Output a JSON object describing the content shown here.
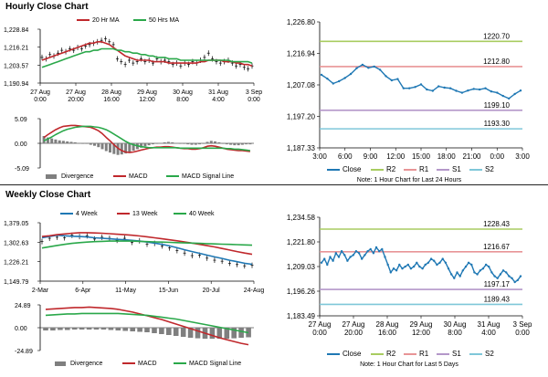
{
  "sections": {
    "hourly_title": "Hourly Close Chart",
    "weekly_title": "Weekly Close Chart"
  },
  "colors": {
    "ma20": "#c0282c",
    "ma50": "#2aa84a",
    "close": "#1f78b4",
    "r2": "#a8cc60",
    "r1": "#e89496",
    "s1": "#b497c9",
    "s2": "#7fc7d9",
    "hist": "#7f7f7f",
    "candle": "#000000"
  },
  "chart_data": [
    {
      "id": "hourly-price",
      "type": "line",
      "legend": [
        "20 Hr MA",
        "50 Hrs MA"
      ],
      "yticks": [
        "1,228.84",
        "1,216.21",
        "1,203.57",
        "1,190.94"
      ],
      "ylim": [
        1190.94,
        1228.84
      ],
      "xticks": [
        "27 Aug\n0:00",
        "27 Aug\n20:00",
        "28 Aug\n16:00",
        "29 Aug\n12:00",
        "30 Aug\n8:00",
        "31 Aug\n4:00",
        "3 Sep\n0:00"
      ],
      "series": [
        {
          "name": "Close",
          "values": [
            1209,
            1208,
            1211,
            1210,
            1212,
            1214,
            1213,
            1215,
            1214,
            1216,
            1215,
            1217,
            1218,
            1219,
            1220,
            1221,
            1222,
            1220,
            1218,
            1208,
            1206,
            1204,
            1207,
            1205,
            1206,
            1208,
            1206,
            1207,
            1205,
            1208,
            1206,
            1207,
            1206,
            1204,
            1205,
            1203,
            1205,
            1204,
            1206,
            1205,
            1207,
            1209,
            1212,
            1208,
            1206,
            1205,
            1206,
            1207,
            1205,
            1203,
            1204,
            1202,
            1201,
            1203
          ]
        },
        {
          "name": "20 Hr MA",
          "values": [
            1207,
            1208,
            1209,
            1210,
            1211,
            1212,
            1213,
            1214,
            1215,
            1216,
            1217,
            1218,
            1219,
            1219,
            1220,
            1220,
            1219,
            1218,
            1216,
            1214,
            1212,
            1210,
            1209,
            1208,
            1207,
            1207,
            1207,
            1207,
            1206,
            1206,
            1206,
            1206,
            1205,
            1205,
            1205,
            1205,
            1205,
            1205,
            1205,
            1205,
            1206,
            1206,
            1207,
            1207,
            1207,
            1207,
            1206,
            1206,
            1206,
            1205,
            1205,
            1204,
            1204,
            1203
          ]
        },
        {
          "name": "50 Hrs MA",
          "values": [
            1202,
            1203,
            1204,
            1205,
            1206,
            1207,
            1208,
            1209,
            1210,
            1211,
            1212,
            1213,
            1213,
            1214,
            1214,
            1215,
            1215,
            1215,
            1215,
            1214,
            1214,
            1213,
            1213,
            1212,
            1212,
            1211,
            1211,
            1210,
            1210,
            1209,
            1209,
            1209,
            1208,
            1208,
            1208,
            1207,
            1207,
            1207,
            1207,
            1207,
            1207,
            1207,
            1207,
            1207,
            1207,
            1207,
            1207,
            1207,
            1206,
            1206,
            1206,
            1206,
            1206,
            1205
          ]
        }
      ]
    },
    {
      "id": "hourly-macd",
      "type": "bar",
      "legend": [
        "Divergence",
        "MACD",
        "MACD Signal Line"
      ],
      "yticks": [
        "5.09",
        "0.00",
        "-5.09"
      ],
      "ylim": [
        -5.09,
        5.09
      ],
      "series": [
        {
          "name": "Divergence",
          "values": [
            1.5,
            1.2,
            1.0,
            0.8,
            0.6,
            0.5,
            0.4,
            0.3,
            0.2,
            0.1,
            0.0,
            -0.1,
            -0.3,
            -0.5,
            -0.8,
            -1.2,
            -1.6,
            -1.9,
            -2.2,
            -2.4,
            -2.3,
            -2.1,
            -1.8,
            -1.5,
            -1.2,
            -0.9,
            -0.6,
            -0.4,
            -0.2,
            0.0,
            0.1,
            0.2,
            0.3,
            0.2,
            0.1,
            0.0,
            -0.1,
            -0.2,
            -0.3,
            -0.3,
            -0.2,
            0.0,
            0.3,
            0.5,
            0.4,
            0.2,
            0.0,
            -0.2,
            -0.3,
            -0.4,
            -0.4,
            -0.3,
            -0.2,
            -0.2
          ]
        },
        {
          "name": "MACD",
          "values": [
            1.2,
            1.8,
            2.3,
            2.8,
            3.2,
            3.5,
            3.6,
            3.7,
            3.7,
            3.6,
            3.5,
            3.4,
            3.3,
            3.0,
            2.6,
            2.0,
            1.2,
            0.5,
            -0.3,
            -1.0,
            -1.5,
            -1.8,
            -1.9,
            -1.8,
            -1.6,
            -1.4,
            -1.2,
            -1.0,
            -0.9,
            -0.8,
            -0.8,
            -0.7,
            -0.7,
            -0.8,
            -0.9,
            -1.0,
            -1.1,
            -1.1,
            -1.2,
            -1.2,
            -1.1,
            -0.9,
            -0.6,
            -0.5,
            -0.6,
            -0.8,
            -1.0,
            -1.2,
            -1.3,
            -1.4,
            -1.5,
            -1.5,
            -1.6,
            -1.7
          ]
        },
        {
          "name": "MACD Signal Line",
          "values": [
            0.5,
            0.9,
            1.3,
            1.8,
            2.2,
            2.6,
            2.9,
            3.1,
            3.3,
            3.4,
            3.5,
            3.5,
            3.5,
            3.4,
            3.3,
            3.1,
            2.8,
            2.4,
            1.9,
            1.4,
            0.9,
            0.4,
            0.0,
            -0.3,
            -0.5,
            -0.7,
            -0.8,
            -0.9,
            -0.9,
            -0.9,
            -0.9,
            -0.9,
            -0.9,
            -0.9,
            -0.9,
            -1.0,
            -1.0,
            -1.0,
            -1.0,
            -1.0,
            -1.0,
            -1.0,
            -1.0,
            -1.0,
            -1.0,
            -1.0,
            -1.0,
            -1.1,
            -1.1,
            -1.2,
            -1.2,
            -1.3,
            -1.4,
            -1.5
          ]
        }
      ]
    },
    {
      "id": "hourly-close",
      "type": "line",
      "legend": [
        "Close",
        "R2",
        "R1",
        "S1",
        "S2"
      ],
      "note": "Note: 1 Hour Chart for Last 24 Hours",
      "yticks": [
        "1,226.80",
        "1,216.94",
        "1,207.08",
        "1,197.20",
        "1,187.33"
      ],
      "ylim": [
        1187.33,
        1226.8
      ],
      "xticks": [
        "3:00",
        "6:00",
        "9:00",
        "12:00",
        "15:00",
        "18:00",
        "21:00",
        "0:00",
        "3:00"
      ],
      "levels": [
        {
          "name": "R2",
          "value": 1220.7,
          "label": "1220.70"
        },
        {
          "name": "R1",
          "value": 1212.8,
          "label": "1212.80"
        },
        {
          "name": "S1",
          "value": 1199.1,
          "label": "1199.10"
        },
        {
          "name": "S2",
          "value": 1193.3,
          "label": "1193.30"
        }
      ],
      "series": [
        {
          "name": "Close",
          "values": [
            1210.2,
            1209.0,
            1207.5,
            1208.2,
            1209.2,
            1210.5,
            1212.3,
            1213.4,
            1212.4,
            1212.8,
            1211.8,
            1209.8,
            1208.5,
            1208.9,
            1206.0,
            1206.0,
            1206.4,
            1207.2,
            1205.6,
            1205.2,
            1206.6,
            1206.2,
            1206.0,
            1205.2,
            1204.6,
            1205.3,
            1205.8,
            1205.6,
            1206.0,
            1205.0,
            1204.6,
            1203.6,
            1202.8,
            1204.2,
            1205.3
          ]
        }
      ]
    },
    {
      "id": "weekly-price",
      "type": "line",
      "legend": [
        "4 Week",
        "13 Week",
        "40 Week"
      ],
      "yticks": [
        "1,379.05",
        "1,302.63",
        "1,226.21",
        "1,149.79"
      ],
      "ylim": [
        1149.79,
        1379.05
      ],
      "xticks": [
        "2-Mar",
        "6-Apr",
        "11-May",
        "15-Jun",
        "20-Jul",
        "24-Aug"
      ],
      "series": [
        {
          "name": "Close",
          "values": [
            1305,
            1318,
            1322,
            1320,
            1330,
            1325,
            1328,
            1315,
            1322,
            1318,
            1310,
            1318,
            1302,
            1308,
            1295,
            1298,
            1288,
            1280,
            1270,
            1260,
            1250,
            1252,
            1240,
            1232,
            1228,
            1220,
            1215,
            1210,
            1212
          ]
        },
        {
          "name": "4 Week",
          "values": [
            1320,
            1325,
            1330,
            1328,
            1326,
            1325,
            1323,
            1320,
            1318,
            1316,
            1314,
            1312,
            1310,
            1307,
            1303,
            1299,
            1294,
            1288,
            1281,
            1273,
            1266,
            1259,
            1252,
            1245,
            1239,
            1232,
            1226,
            1220,
            1216
          ]
        },
        {
          "name": "13 Week",
          "values": [
            1325,
            1328,
            1332,
            1335,
            1338,
            1340,
            1340,
            1339,
            1338,
            1336,
            1334,
            1332,
            1330,
            1327,
            1324,
            1320,
            1316,
            1312,
            1308,
            1304,
            1299,
            1294,
            1289,
            1284,
            1278,
            1272,
            1266,
            1260,
            1255
          ]
        },
        {
          "name": "40 Week",
          "values": [
            1280,
            1285,
            1290,
            1294,
            1298,
            1301,
            1303,
            1305,
            1306,
            1307,
            1307,
            1307,
            1307,
            1306,
            1305,
            1304,
            1303,
            1302,
            1301,
            1300,
            1299,
            1298,
            1297,
            1296,
            1295,
            1294,
            1293,
            1292,
            1291
          ]
        }
      ]
    },
    {
      "id": "weekly-macd",
      "type": "bar",
      "legend": [
        "Divergence",
        "MACD",
        "MACD Signal Line"
      ],
      "yticks": [
        "24.89",
        "0.00",
        "-24.89"
      ],
      "ylim": [
        -24.89,
        24.89
      ],
      "series": [
        {
          "name": "Divergence",
          "values": [
            -3,
            -3,
            -2.5,
            -2.5,
            -2,
            -2,
            -2,
            -2,
            -2,
            -2.5,
            -3,
            -3.5,
            -4,
            -4.5,
            -5,
            -6,
            -7,
            -8,
            -9,
            -10,
            -11,
            -11.5,
            -12,
            -12,
            -12,
            -12,
            -11.5,
            -11,
            -10.5
          ]
        },
        {
          "name": "MACD",
          "values": [
            20,
            20.5,
            21,
            21.5,
            22,
            22,
            22.5,
            22,
            21.5,
            21,
            20,
            18.5,
            17,
            15,
            13,
            11,
            9,
            6.5,
            4,
            1.5,
            -1,
            -3.5,
            -6,
            -8.5,
            -11,
            -13,
            -15,
            -17,
            -18.5
          ]
        },
        {
          "name": "MACD Signal Line",
          "values": [
            13.5,
            14,
            14.5,
            15,
            15,
            15.5,
            15.5,
            15.5,
            15.5,
            15.5,
            15.5,
            15,
            14.5,
            14,
            13.5,
            12.5,
            11.5,
            10.5,
            9.5,
            8,
            6.5,
            5,
            3.5,
            2,
            0.5,
            -1,
            -2.5,
            -4,
            -5.5
          ]
        }
      ]
    },
    {
      "id": "weekly-close",
      "type": "line",
      "legend": [
        "Close",
        "R2",
        "R1",
        "S1",
        "S2"
      ],
      "note": "Note: 1 Hour Chart for Last 5 Days",
      "yticks": [
        "1,234.58",
        "1,221.80",
        "1,209.03",
        "1,196.26",
        "1,183.49"
      ],
      "ylim": [
        1183.49,
        1234.58
      ],
      "xticks": [
        "27 Aug\n0:00",
        "27 Aug\n20:00",
        "28 Aug\n16:00",
        "29 Aug\n12:00",
        "30 Aug\n8:00",
        "31 Aug\n4:00",
        "3 Sep\n0:00"
      ],
      "levels": [
        {
          "name": "R2",
          "value": 1228.43,
          "label": "1228.43"
        },
        {
          "name": "R1",
          "value": 1216.67,
          "label": "1216.67"
        },
        {
          "name": "S1",
          "value": 1197.17,
          "label": "1197.17"
        },
        {
          "name": "S2",
          "value": 1189.43,
          "label": "1189.43"
        }
      ],
      "series": [
        {
          "name": "Close",
          "values": [
            1211,
            1213,
            1210,
            1214,
            1212,
            1216,
            1214,
            1217,
            1215,
            1212,
            1214,
            1215,
            1217,
            1216,
            1213,
            1215,
            1217,
            1218,
            1216,
            1219,
            1217,
            1218,
            1214,
            1210,
            1206,
            1208,
            1207,
            1210,
            1208,
            1209,
            1210,
            1208,
            1209,
            1211,
            1209,
            1208,
            1210,
            1211,
            1213,
            1212,
            1210,
            1211,
            1213,
            1211,
            1208,
            1205,
            1203,
            1206,
            1204,
            1207,
            1209,
            1211,
            1210,
            1206,
            1205,
            1207,
            1208,
            1210,
            1209,
            1206,
            1204,
            1203,
            1205,
            1207,
            1206,
            1204,
            1203,
            1201,
            1202,
            1204
          ]
        }
      ]
    }
  ]
}
